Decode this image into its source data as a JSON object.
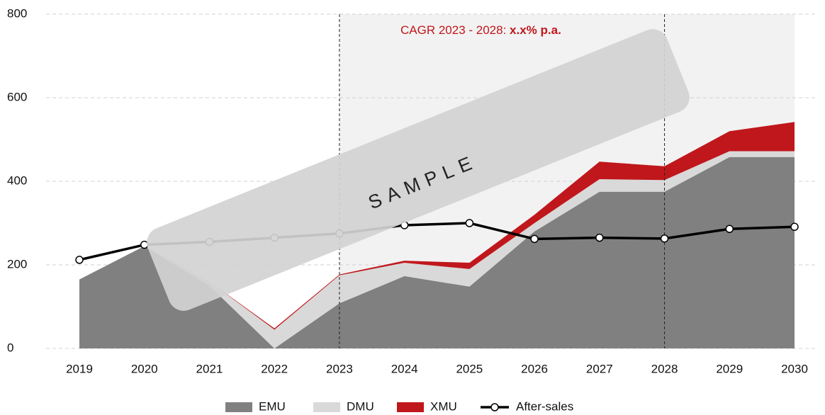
{
  "chart_data": {
    "type": "stacked_area_line",
    "categories": [
      "2019",
      "2020",
      "2021",
      "2022",
      "2023",
      "2024",
      "2025",
      "2026",
      "2027",
      "2028",
      "2029",
      "2030"
    ],
    "series": [
      {
        "name": "EMU",
        "color": "#808080",
        "values": [
          165,
          245,
          150,
          0,
          108,
          173,
          148,
          280,
          375,
          375,
          458,
          458
        ]
      },
      {
        "name": "DMU",
        "color": "#d9d9d9",
        "values": [
          0,
          0,
          10,
          45,
          67,
          32,
          42,
          20,
          30,
          28,
          14,
          14
        ]
      },
      {
        "name": "XMU",
        "color": "#c0171c",
        "values": [
          0,
          0,
          0,
          3,
          2,
          5,
          15,
          20,
          42,
          33,
          48,
          70
        ]
      },
      {
        "name": "After-sales",
        "color": "#000000",
        "type": "line",
        "values": [
          212,
          248,
          255,
          265,
          275,
          295,
          300,
          262,
          265,
          263,
          286,
          291
        ]
      }
    ],
    "ylim": [
      0,
      800
    ],
    "yticks": [
      0,
      200,
      400,
      600,
      800
    ],
    "grid": true,
    "highlight": {
      "from": "2023",
      "to": "2030",
      "color": "#f2f2f2"
    },
    "markers": [
      "2023",
      "2028"
    ],
    "annotation": {
      "text": "CAGR 2023 - 2028: ",
      "bold": "x.x% p.a.",
      "color": "#c0171c"
    },
    "watermark": "SAMPLE"
  }
}
